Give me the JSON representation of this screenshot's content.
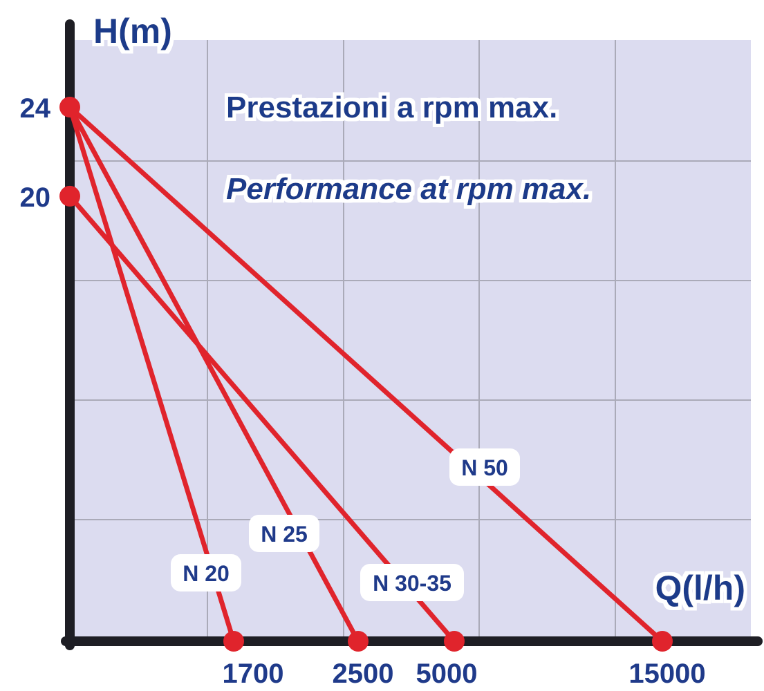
{
  "chart_data": {
    "type": "line",
    "title": "Prestazioni a rpm max.",
    "subtitle": "Performance at rpm max.",
    "xlabel": "Q(l/h)",
    "ylabel": "H(m)",
    "x_tick_labels": [
      "1700",
      "2500",
      "5000",
      "15000"
    ],
    "y_tick_labels": [
      "24",
      "20"
    ],
    "grid": true,
    "series": [
      {
        "name": "N 20",
        "points": [
          {
            "x": 0,
            "y": 24
          },
          {
            "x": 1700,
            "y": 0
          }
        ]
      },
      {
        "name": "N 25",
        "points": [
          {
            "x": 0,
            "y": 24
          },
          {
            "x": 2500,
            "y": 0
          }
        ]
      },
      {
        "name": "N 30-35",
        "points": [
          {
            "x": 0,
            "y": 20
          },
          {
            "x": 5000,
            "y": 0
          }
        ]
      },
      {
        "name": "N 50",
        "points": [
          {
            "x": 0,
            "y": 24
          },
          {
            "x": 15000,
            "y": 0
          }
        ]
      }
    ],
    "colors": {
      "plot_background": "#dcdcf0",
      "grid": "#aaaab8",
      "axis": "#1e1e24",
      "series": "#e0242c",
      "text": "#1f3a8a"
    }
  }
}
